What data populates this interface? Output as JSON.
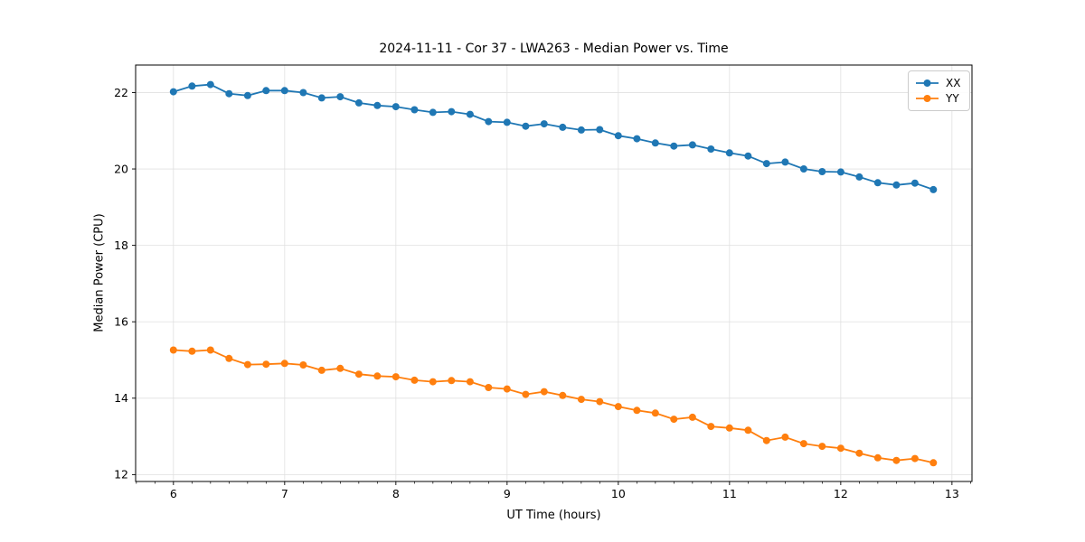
{
  "chart_data": {
    "type": "line",
    "title": "2024-11-11 - Cor 37 - LWA263 - Median Power vs. Time",
    "xlabel": "UT Time (hours)",
    "ylabel": "Median Power (CPU)",
    "xlim": [
      5.66,
      13.18
    ],
    "ylim": [
      11.82,
      22.72
    ],
    "x_ticks": [
      6,
      7,
      8,
      9,
      10,
      11,
      12,
      13
    ],
    "y_ticks": [
      12,
      14,
      16,
      18,
      20,
      22
    ],
    "x_minor_interval": 0.1667,
    "grid": true,
    "grid_color": "#e0e0e0",
    "legend_position": "upper right",
    "marker": "circle",
    "x": [
      6.0,
      6.167,
      6.333,
      6.5,
      6.667,
      6.833,
      7.0,
      7.167,
      7.333,
      7.5,
      7.667,
      7.833,
      8.0,
      8.167,
      8.333,
      8.5,
      8.667,
      8.833,
      9.0,
      9.167,
      9.333,
      9.5,
      9.667,
      9.833,
      10.0,
      10.167,
      10.333,
      10.5,
      10.667,
      10.833,
      11.0,
      11.167,
      11.333,
      11.5,
      11.667,
      11.833,
      12.0,
      12.167,
      12.333,
      12.5,
      12.667,
      12.833
    ],
    "series": [
      {
        "name": "XX",
        "color": "#1f77b4",
        "values": [
          22.02,
          22.17,
          22.21,
          21.97,
          21.92,
          22.05,
          22.05,
          22.0,
          21.86,
          21.89,
          21.73,
          21.66,
          21.63,
          21.55,
          21.48,
          21.5,
          21.43,
          21.24,
          21.22,
          21.12,
          21.18,
          21.09,
          21.02,
          21.03,
          20.87,
          20.79,
          20.68,
          20.6,
          20.63,
          20.52,
          20.42,
          20.34,
          20.14,
          20.18,
          20.0,
          19.93,
          19.92,
          19.79,
          19.64,
          19.58,
          19.63,
          19.46
        ]
      },
      {
        "name": "YY",
        "color": "#ff7f0e",
        "values": [
          15.26,
          15.23,
          15.26,
          15.04,
          14.88,
          14.89,
          14.91,
          14.87,
          14.73,
          14.78,
          14.63,
          14.58,
          14.56,
          14.47,
          14.43,
          14.46,
          14.43,
          14.28,
          14.24,
          14.1,
          14.17,
          14.07,
          13.97,
          13.91,
          13.78,
          13.68,
          13.61,
          13.45,
          13.5,
          13.26,
          13.22,
          13.16,
          12.89,
          12.98,
          12.81,
          12.74,
          12.69,
          12.56,
          12.44,
          12.37,
          12.42,
          12.31
        ]
      }
    ]
  }
}
